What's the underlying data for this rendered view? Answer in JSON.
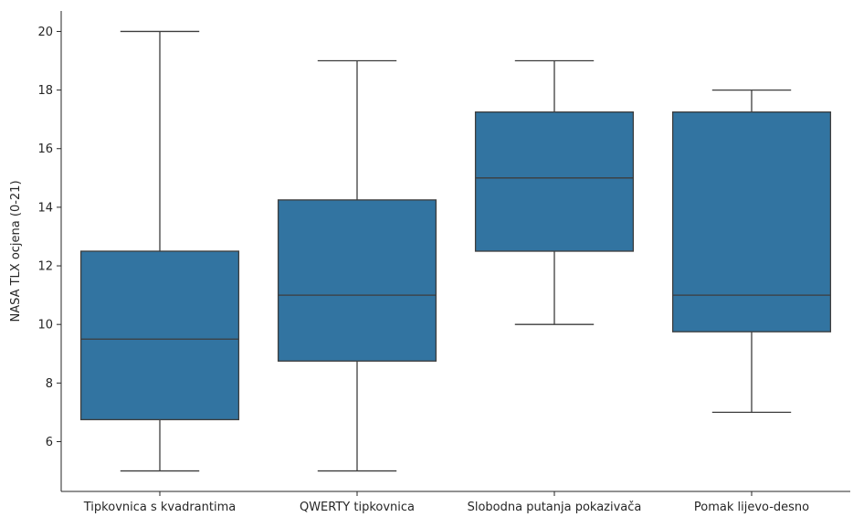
{
  "chart_data": {
    "type": "boxplot",
    "title": "",
    "xlabel": "",
    "ylabel": "NASA TLX ocjena (0-21)",
    "ylim": [
      4.3,
      20.7
    ],
    "yticks": [
      6,
      8,
      10,
      12,
      14,
      16,
      18,
      20
    ],
    "grid": false,
    "box_color": "#3274a1",
    "line_color": "#3d3d3d",
    "categories": [
      "Tipkovnica s kvadrantima",
      "QWERTY tipkovnica",
      "Slobodna putanja pokazivača",
      "Pomak lijevo-desno"
    ],
    "boxes": [
      {
        "whisker_low": 5,
        "q1": 6.75,
        "median": 9.5,
        "q3": 12.5,
        "whisker_high": 20
      },
      {
        "whisker_low": 5,
        "q1": 8.75,
        "median": 11,
        "q3": 14.25,
        "whisker_high": 19
      },
      {
        "whisker_low": 10,
        "q1": 12.5,
        "median": 15,
        "q3": 17.25,
        "whisker_high": 19
      },
      {
        "whisker_low": 7,
        "q1": 9.75,
        "median": 11,
        "q3": 17.25,
        "whisker_high": 18
      }
    ]
  }
}
